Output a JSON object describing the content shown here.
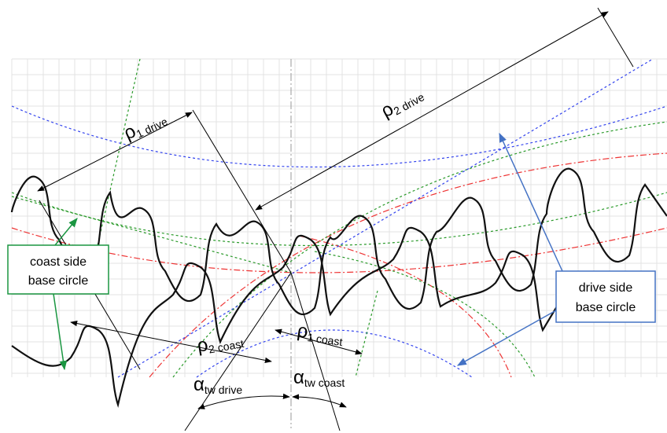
{
  "labels": {
    "rho1_drive": {
      "symbol": "ρ",
      "sub": "1 drive"
    },
    "rho2_drive": {
      "symbol": "ρ",
      "sub": "2 drive"
    },
    "rho2_coast": {
      "symbol": "ρ",
      "sub": "2 coast"
    },
    "rho1_coast": {
      "symbol": "ρ",
      "sub": "1 coast"
    },
    "alpha_drive": {
      "symbol": "α",
      "sub": "tw drive"
    },
    "alpha_coast": {
      "symbol": "α",
      "sub": "tw coast"
    }
  },
  "callouts": {
    "coast": {
      "lines": [
        "coast side",
        "base circle"
      ]
    },
    "drive": {
      "lines": [
        "drive side",
        "base circle"
      ]
    }
  }
}
